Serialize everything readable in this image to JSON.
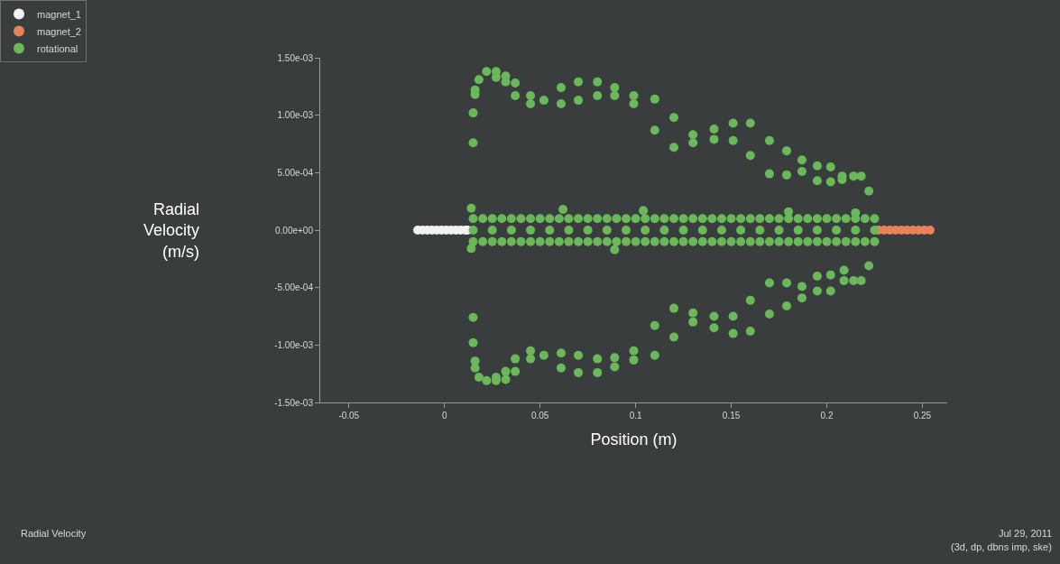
{
  "chart_data": {
    "type": "scatter",
    "xlabel": "Position (m)",
    "ylabel": "Radial Velocity (m/s)",
    "xlim": [
      -0.065,
      0.263
    ],
    "xticks": [
      -0.05,
      0,
      0.05,
      0.1,
      0.15,
      0.2,
      0.25
    ],
    "ylim": [
      -0.0015,
      0.0015
    ],
    "yticks": [
      {
        "value": 0.0015,
        "label": "1.50e-03"
      },
      {
        "value": 0.001,
        "label": "1.00e-03"
      },
      {
        "value": 0.0005,
        "label": "5.00e-04"
      },
      {
        "value": 0,
        "label": "0.00e+00"
      },
      {
        "value": -0.0005,
        "label": "-5.00e-04"
      },
      {
        "value": -0.001,
        "label": "-1.00e-03"
      },
      {
        "value": -0.0015,
        "label": "-1.50e-03"
      }
    ],
    "grid": false,
    "legend": "top left",
    "marker": "circle",
    "series": [
      {
        "name": "magnet_1",
        "color": "#f2f2f2",
        "x": [
          -0.014,
          -0.0115,
          -0.009,
          -0.0065,
          -0.004,
          -0.0015,
          0.001,
          0.0035,
          0.006,
          0.0085,
          0.011,
          0.012
        ],
        "values": [
          0,
          0,
          0,
          0,
          0,
          0,
          0,
          0,
          0,
          0,
          0,
          0
        ]
      },
      {
        "name": "magnet_2",
        "color": "#e8825a",
        "x": [
          0.227,
          0.23,
          0.233,
          0.236,
          0.239,
          0.242,
          0.245,
          0.248,
          0.251,
          0.254
        ],
        "values": [
          0,
          0,
          0,
          0,
          0,
          0,
          0,
          0,
          0,
          0
        ]
      },
      {
        "name": "rotational",
        "color": "#6ab85a",
        "x": [
          0.015,
          0.015,
          0.016,
          0.016,
          0.018,
          0.022,
          0.027,
          0.027,
          0.032,
          0.032,
          0.037,
          0.037,
          0.045,
          0.045,
          0.052,
          0.061,
          0.061,
          0.07,
          0.07,
          0.08,
          0.08,
          0.089,
          0.089,
          0.099,
          0.099,
          0.11,
          0.11,
          0.12,
          0.12,
          0.13,
          0.13,
          0.141,
          0.141,
          0.151,
          0.151,
          0.16,
          0.16,
          0.17,
          0.17,
          0.179,
          0.179,
          0.187,
          0.187,
          0.195,
          0.195,
          0.202,
          0.202,
          0.208,
          0.208,
          0.214,
          0.218,
          0.222,
          0.222,
          0.195,
          0.202,
          0.209,
          0.209,
          0.214,
          0.218,
          0.187,
          0.187,
          0.195,
          0.202,
          0.17,
          0.179,
          0.179,
          0.17,
          0.16,
          0.16,
          0.151,
          0.151,
          0.141,
          0.141,
          0.13,
          0.13,
          0.12,
          0.12,
          0.11,
          0.11,
          0.099,
          0.099,
          0.089,
          0.089,
          0.015,
          0.015,
          0.016,
          0.016,
          0.018,
          0.022,
          0.027,
          0.027,
          0.032,
          0.032,
          0.037,
          0.037,
          0.045,
          0.045,
          0.052,
          0.061,
          0.061,
          0.07,
          0.07,
          0.08,
          0.08,
          0.014,
          0.014,
          0.062,
          0.104,
          0.18,
          0.215,
          0.089,
          0.015,
          0.015,
          0.015,
          0.025,
          0.025,
          0.025,
          0.035,
          0.035,
          0.035,
          0.045,
          0.045,
          0.045,
          0.055,
          0.055,
          0.055,
          0.065,
          0.065,
          0.065,
          0.075,
          0.075,
          0.075,
          0.085,
          0.085,
          0.085,
          0.095,
          0.095,
          0.095,
          0.105,
          0.105,
          0.105,
          0.115,
          0.115,
          0.115,
          0.125,
          0.125,
          0.125,
          0.135,
          0.135,
          0.135,
          0.145,
          0.145,
          0.145,
          0.155,
          0.155,
          0.155,
          0.165,
          0.165,
          0.165,
          0.175,
          0.175,
          0.175,
          0.185,
          0.185,
          0.185,
          0.195,
          0.195,
          0.195,
          0.205,
          0.205,
          0.205,
          0.215,
          0.215,
          0.215,
          0.225,
          0.225,
          0.225,
          0.02,
          0.03,
          0.04,
          0.05,
          0.06,
          0.07,
          0.08,
          0.09,
          0.1,
          0.11,
          0.12,
          0.13,
          0.14,
          0.15,
          0.16,
          0.17,
          0.18,
          0.19,
          0.2,
          0.21,
          0.22,
          0.02,
          0.03,
          0.04,
          0.05,
          0.06,
          0.07,
          0.08,
          0.09,
          0.1,
          0.11,
          0.12,
          0.13,
          0.14,
          0.15,
          0.16,
          0.17,
          0.18,
          0.19,
          0.2,
          0.21,
          0.22
        ],
        "values": [
          0.00076,
          0.00102,
          0.00122,
          0.00118,
          0.00131,
          0.00138,
          0.00138,
          0.00133,
          0.00134,
          0.00129,
          0.00128,
          0.00117,
          0.00117,
          0.0011,
          0.00113,
          0.00124,
          0.0011,
          0.00129,
          0.00113,
          0.00129,
          0.00117,
          0.00124,
          0.00117,
          0.00117,
          0.0011,
          0.00114,
          0.00087,
          0.00098,
          0.00072,
          0.00083,
          0.00076,
          0.00088,
          0.00079,
          0.00093,
          0.00078,
          0.00093,
          0.00065,
          0.00078,
          0.00049,
          0.00069,
          0.00048,
          0.00061,
          0.00051,
          0.00056,
          0.00043,
          0.00055,
          0.00042,
          0.00047,
          0.00044,
          0.00047,
          0.00047,
          0.00034,
          -0.00031,
          -0.0004,
          -0.00039,
          -0.00035,
          -0.00044,
          -0.00044,
          -0.00044,
          -0.00049,
          -0.00059,
          -0.00053,
          -0.00053,
          -0.00046,
          -0.00046,
          -0.00066,
          -0.00073,
          -0.00061,
          -0.00088,
          -0.00075,
          -0.0009,
          -0.00075,
          -0.00085,
          -0.00072,
          -0.0008,
          -0.00068,
          -0.00093,
          -0.00083,
          -0.00109,
          -0.00105,
          -0.00113,
          -0.00111,
          -0.00119,
          -0.00076,
          -0.00098,
          -0.00114,
          -0.0012,
          -0.00128,
          -0.00131,
          -0.00131,
          -0.00128,
          -0.00123,
          -0.0013,
          -0.00112,
          -0.00123,
          -0.00105,
          -0.00112,
          -0.00109,
          -0.00107,
          -0.0012,
          -0.00109,
          -0.00124,
          -0.00112,
          -0.00124,
          0.00019,
          -0.00016,
          0.00018,
          0.00017,
          0.00016,
          0.00015,
          -0.00017,
          0.0001,
          0,
          -0.0001,
          0.0001,
          0,
          -0.0001,
          0.0001,
          0,
          -0.0001,
          0.0001,
          0,
          -0.0001,
          0.0001,
          0,
          -0.0001,
          0.0001,
          0,
          -0.0001,
          0.0001,
          0,
          -0.0001,
          0.0001,
          0,
          -0.0001,
          0.0001,
          0,
          -0.0001,
          0.0001,
          0,
          -0.0001,
          0.0001,
          0,
          -0.0001,
          0.0001,
          0,
          -0.0001,
          0.0001,
          0,
          -0.0001,
          0.0001,
          0,
          -0.0001,
          0.0001,
          0,
          -0.0001,
          0.0001,
          0,
          -0.0001,
          0.0001,
          0,
          -0.0001,
          0.0001,
          0,
          -0.0001,
          0.0001,
          0,
          -0.0001,
          0.0001,
          0,
          -0.0001,
          0.0001,
          0,
          -0.0001,
          0.0001,
          0,
          -0.0001,
          0.0001,
          0.0001,
          0.0001,
          0.0001,
          0.0001,
          0.0001,
          0.0001,
          0.0001,
          0.0001,
          0.0001,
          0.0001,
          0.0001,
          0.0001,
          0.0001,
          0.0001,
          0.0001,
          0.0001,
          0.0001,
          0.0001,
          0.0001,
          0.0001,
          -0.0001,
          -0.0001,
          -0.0001,
          -0.0001,
          -0.0001,
          -0.0001,
          -0.0001,
          -0.0001,
          -0.0001,
          -0.0001,
          -0.0001,
          -0.0001,
          -0.0001,
          -0.0001,
          -0.0001,
          -0.0001,
          -0.0001,
          -0.0001,
          -0.0001,
          -0.0001,
          -0.0001
        ]
      }
    ],
    "annotations": [
      "Radial Velocity",
      "Jul 29, 2011",
      "(3d, dp, dbns imp, ske)"
    ]
  }
}
